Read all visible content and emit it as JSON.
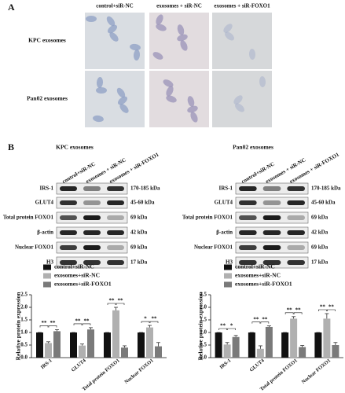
{
  "panel_a": {
    "label": "A",
    "columns": [
      "control+siR-NC",
      "exosomes + siR-NC",
      "exosomes + siR-FOXO1"
    ],
    "rows": [
      "KPC exosomes",
      "Pan02 exosomes"
    ]
  },
  "panel_b": {
    "label": "B",
    "blots": [
      {
        "title": "KPC exosomes",
        "lanes": [
          "control+siR-NC",
          "exosomes + siR-NC",
          "exosomes + siR-FOXO1"
        ],
        "proteins": [
          {
            "name": "IRS-1",
            "size": "170-185 kDa"
          },
          {
            "name": "GLUT4",
            "size": "45-60 kDa"
          },
          {
            "name": "Total protein FOXO1",
            "size": "69 kDa"
          },
          {
            "name": "β-actin",
            "size": "42 kDa"
          },
          {
            "name": "Nuclear FOXO1",
            "size": "69 kDa"
          },
          {
            "name": "H3",
            "size": "17 kDa"
          }
        ]
      },
      {
        "title": "Pan02 exosomes",
        "lanes": [
          "control+siR-NC",
          "exosomes + siR-NC",
          "exosomes + siR-FOXO1"
        ],
        "proteins": [
          {
            "name": "IRS-1",
            "size": "170-185 kDa"
          },
          {
            "name": "GLUT4",
            "size": "45-60 kDa"
          },
          {
            "name": "Total protein FOXO1",
            "size": "69 kDa"
          },
          {
            "name": "β-actin",
            "size": "42 kDa"
          },
          {
            "name": "Nuclear FOXO1",
            "size": "69 kDa"
          },
          {
            "name": "H3",
            "size": "17 kDa"
          }
        ]
      }
    ]
  },
  "chart_data": [
    {
      "type": "bar",
      "y_label": "Relative protein expression",
      "categories": [
        "IRS-1",
        "GLUT4",
        "Total protein FOXO1",
        "Nuclear FOXO1"
      ],
      "series": [
        {
          "name": "control+siR-NC",
          "color": "#111111",
          "values": [
            1.0,
            1.0,
            1.0,
            1.0
          ],
          "errors": [
            0,
            0,
            0,
            0
          ]
        },
        {
          "name": "exosomes+siR-NC",
          "color": "#b0b0b0",
          "values": [
            0.58,
            0.48,
            1.88,
            1.2
          ],
          "errors": [
            0.05,
            0.06,
            0.12,
            0.08
          ]
        },
        {
          "name": "exosomes+siR-FOXO1",
          "color": "#7a7a7a",
          "values": [
            1.05,
            1.12,
            0.4,
            0.45
          ],
          "errors": [
            0.06,
            0.07,
            0.07,
            0.15
          ]
        }
      ],
      "significance": [
        [
          "**",
          "**"
        ],
        [
          "**",
          "**"
        ],
        [
          "**",
          "**"
        ],
        [
          "*",
          "**"
        ]
      ],
      "ylim": [
        0,
        2.5
      ],
      "yticks": [
        {
          "value": 0,
          "label": "0.0"
        },
        0.5,
        {
          "value": 1,
          "label": "1.0"
        },
        1.5,
        {
          "value": 2,
          "label": "2.0"
        },
        2.5
      ],
      "legend": "top-left"
    },
    {
      "type": "bar",
      "y_label": "Relative protein expression",
      "categories": [
        "IRS-1",
        "GLUT4",
        "Total protein FOXO1",
        "Nuclear FOXO1"
      ],
      "series": [
        {
          "name": "control+siR-NC",
          "color": "#111111",
          "values": [
            1.0,
            1.0,
            1.0,
            1.0
          ],
          "errors": [
            0,
            0,
            0,
            0
          ]
        },
        {
          "name": "exosomes+siR-NC",
          "color": "#b0b0b0",
          "values": [
            0.52,
            0.35,
            1.55,
            1.55
          ],
          "errors": [
            0.08,
            0.12,
            0.08,
            0.2
          ]
        },
        {
          "name": "exosomes+siR-FOXO1",
          "color": "#7a7a7a",
          "values": [
            0.82,
            1.22,
            0.42,
            0.5
          ],
          "errors": [
            0.06,
            0.04,
            0.06,
            0.1
          ]
        }
      ],
      "significance": [
        [
          "**",
          "*"
        ],
        [
          "**",
          "**"
        ],
        [
          "**",
          "**"
        ],
        [
          "**",
          "**"
        ]
      ],
      "ylim": [
        0,
        2.5
      ],
      "yticks": [
        {
          "value": 0,
          "label": "0.0"
        },
        0.5,
        {
          "value": 1,
          "label": "1.0"
        },
        1.5,
        {
          "value": 2,
          "label": "2.0"
        },
        2.5
      ],
      "legend": "top-left"
    }
  ]
}
